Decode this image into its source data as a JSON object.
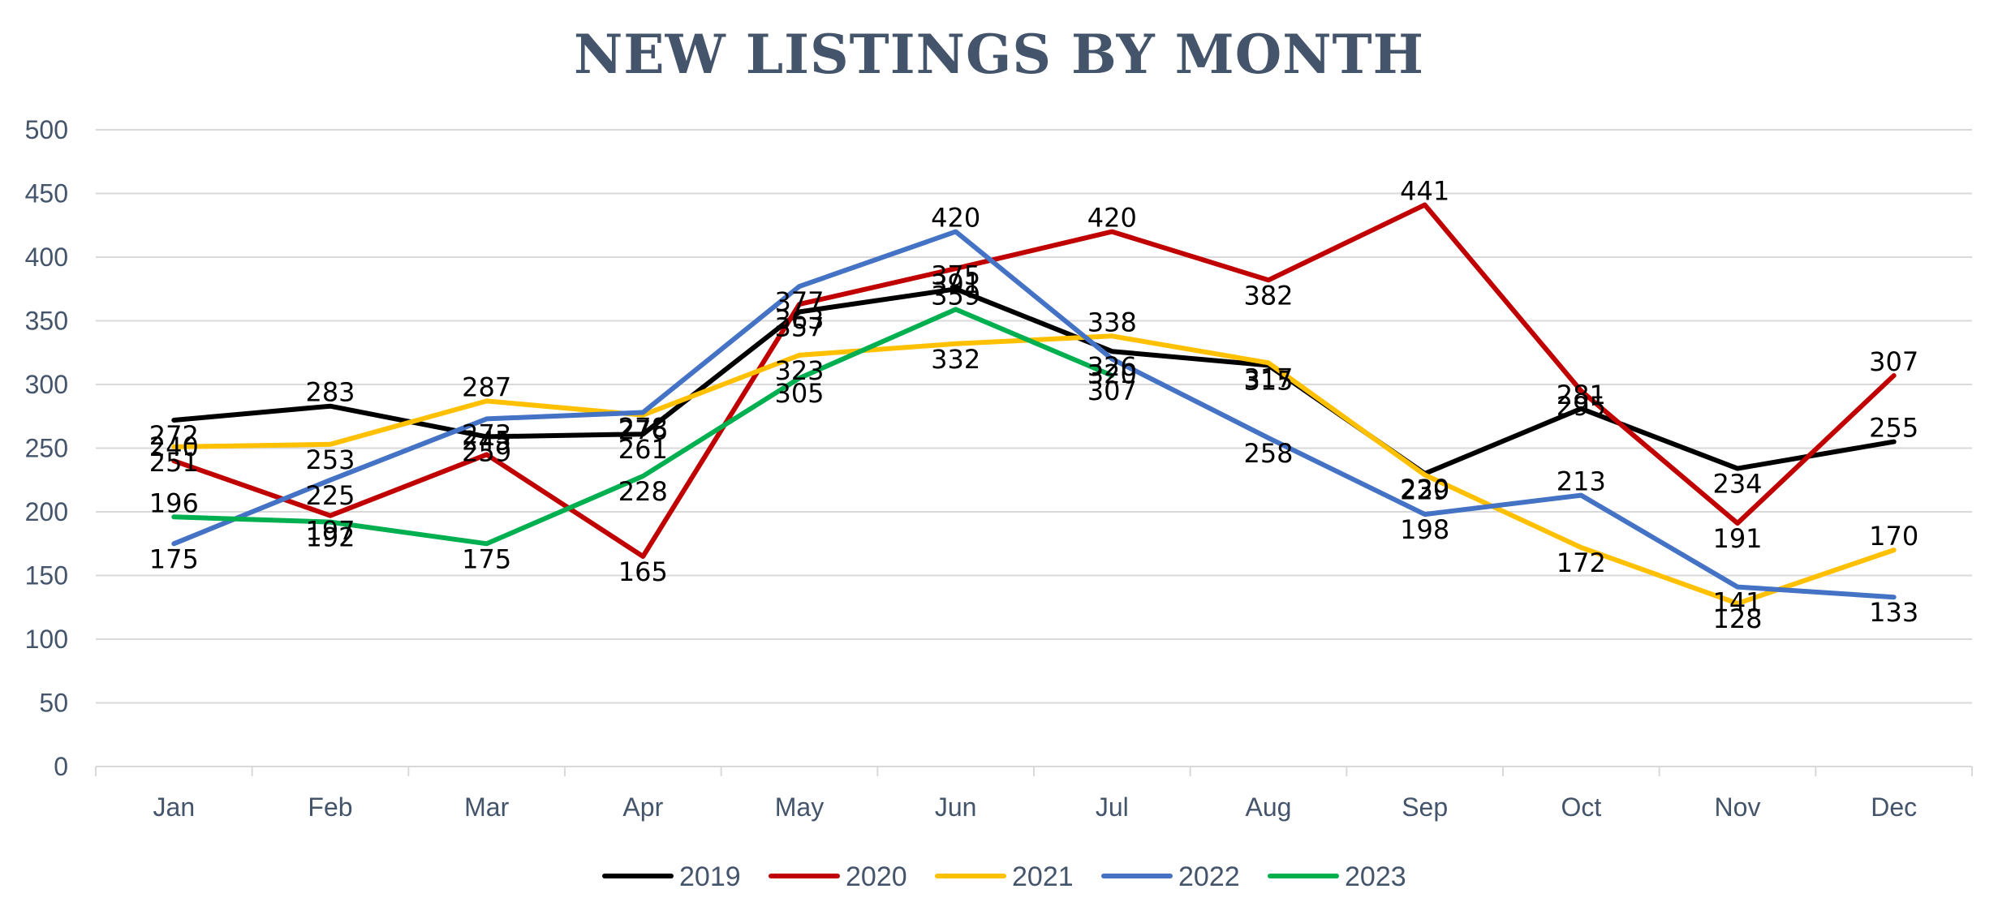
{
  "chart_data": {
    "type": "line",
    "title": "NEW LISTINGS BY MONTH",
    "xlabel": "",
    "ylabel": "",
    "categories": [
      "Jan",
      "Feb",
      "Mar",
      "Apr",
      "May",
      "Jun",
      "Jul",
      "Aug",
      "Sep",
      "Oct",
      "Nov",
      "Dec"
    ],
    "ylim": [
      0,
      500
    ],
    "yticks": [
      0,
      50,
      100,
      150,
      200,
      250,
      300,
      350,
      400,
      450,
      500
    ],
    "grid": true,
    "legend_position": "bottom",
    "data_labels": true,
    "series": [
      {
        "name": "2019",
        "color": "#000000",
        "values": [
          272,
          283,
          259,
          261,
          357,
          375,
          326,
          315,
          230,
          281,
          234,
          255
        ]
      },
      {
        "name": "2020",
        "color": "#c00000",
        "values": [
          240,
          197,
          245,
          165,
          363,
          391,
          420,
          382,
          441,
          295,
          191,
          307
        ]
      },
      {
        "name": "2021",
        "color": "#ffc000",
        "values": [
          251,
          253,
          287,
          276,
          323,
          332,
          338,
          317,
          229,
          172,
          128,
          170
        ]
      },
      {
        "name": "2022",
        "color": "#4472c4",
        "values": [
          175,
          225,
          273,
          278,
          377,
          420,
          320,
          258,
          198,
          213,
          141,
          133
        ]
      },
      {
        "name": "2023",
        "color": "#00b050",
        "values": [
          196,
          192,
          175,
          228,
          305,
          359,
          307,
          null,
          null,
          null,
          null,
          null
        ]
      }
    ]
  }
}
